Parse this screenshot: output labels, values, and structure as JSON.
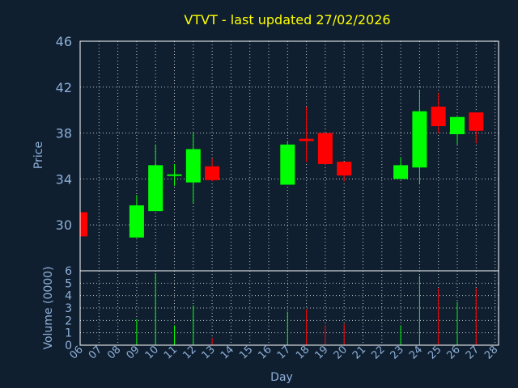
{
  "chart_data": {
    "type": "candlestick",
    "title": "VTVT - last updated 27/02/2026",
    "xlabel": "Day",
    "price_panel": {
      "ylabel": "Price",
      "ylim": [
        26,
        46
      ],
      "yticks": [
        30,
        34,
        38,
        42,
        46
      ],
      "grid": true
    },
    "volume_panel": {
      "ylabel": "Volume (0000)",
      "ylim": [
        0,
        6
      ],
      "yticks": [
        0,
        1,
        2,
        3,
        4,
        5,
        6
      ],
      "grid": true
    },
    "x_ticks": [
      "06",
      "07",
      "08",
      "09",
      "10",
      "11",
      "12",
      "13",
      "14",
      "15",
      "16",
      "17",
      "18",
      "19",
      "20",
      "21",
      "22",
      "23",
      "24",
      "25",
      "26",
      "27",
      "28"
    ],
    "candles": [
      {
        "day": "06",
        "open": 31.1,
        "high": 31.1,
        "low": 29.0,
        "close": 29.0,
        "volume": 0
      },
      {
        "day": "09",
        "open": 28.9,
        "high": 32.6,
        "low": 28.9,
        "close": 31.7,
        "volume": 2.1
      },
      {
        "day": "10",
        "open": 31.2,
        "high": 37.0,
        "low": 31.2,
        "close": 35.2,
        "volume": 5.8
      },
      {
        "day": "11",
        "open": 34.3,
        "high": 35.3,
        "low": 33.4,
        "close": 34.4,
        "volume": 1.6
      },
      {
        "day": "12",
        "open": 33.7,
        "high": 38.0,
        "low": 31.9,
        "close": 36.6,
        "volume": 3.2
      },
      {
        "day": "13",
        "open": 35.1,
        "high": 35.8,
        "low": 33.8,
        "close": 33.9,
        "volume": 0.6
      },
      {
        "day": "17",
        "open": 33.5,
        "high": 37.3,
        "low": 33.5,
        "close": 37.0,
        "volume": 2.7
      },
      {
        "day": "18",
        "open": 37.5,
        "high": 40.3,
        "low": 35.5,
        "close": 37.3,
        "volume": 2.9
      },
      {
        "day": "19",
        "open": 38.0,
        "high": 38.0,
        "low": 35.2,
        "close": 35.3,
        "volume": 1.6
      },
      {
        "day": "20",
        "open": 35.5,
        "high": 35.5,
        "low": 33.8,
        "close": 34.3,
        "volume": 1.7
      },
      {
        "day": "23",
        "open": 34.0,
        "high": 35.9,
        "low": 34.0,
        "close": 35.2,
        "volume": 1.6
      },
      {
        "day": "24",
        "open": 35.0,
        "high": 41.7,
        "low": 33.6,
        "close": 39.9,
        "volume": 5.6
      },
      {
        "day": "25",
        "open": 40.3,
        "high": 41.5,
        "low": 38.0,
        "close": 38.6,
        "volume": 4.6
      },
      {
        "day": "26",
        "open": 37.9,
        "high": 39.4,
        "low": 37.0,
        "close": 39.4,
        "volume": 3.5
      },
      {
        "day": "27",
        "open": 39.8,
        "high": 39.8,
        "low": 37.1,
        "close": 38.2,
        "volume": 4.6
      }
    ],
    "colors": {
      "background": "#0f1f30",
      "up": "#00ff00",
      "down": "#ff0000",
      "title": "#ffff00",
      "labels": "#8fb0d8",
      "frame": "#ffffff",
      "grid": "#c8c8c8"
    }
  }
}
